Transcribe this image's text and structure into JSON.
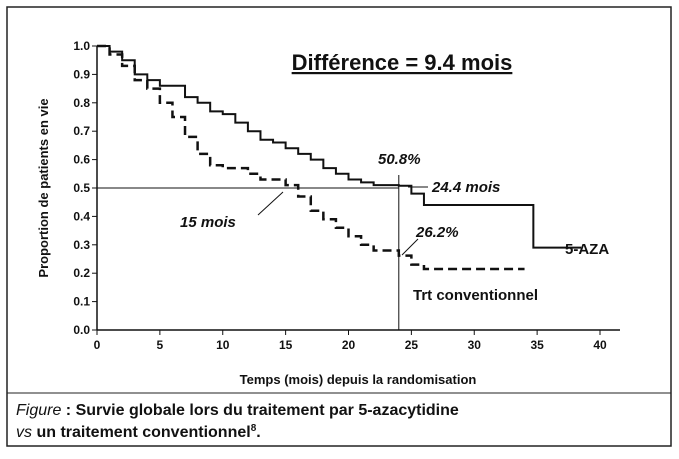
{
  "chart_data": {
    "type": "step",
    "title": "Différence = 9.4 mois",
    "xlabel": "Temps (mois) depuis la randomisation",
    "ylabel": "Proportion de patients en vie",
    "xlim": [
      0,
      40
    ],
    "ylim": [
      0,
      1
    ],
    "xticks": [
      0,
      5,
      10,
      15,
      20,
      25,
      30,
      35,
      40
    ],
    "yticks": [
      {
        "value": 1,
        "label": "1.0"
      },
      0.9,
      0.8,
      0.7,
      0.6,
      0.5,
      0.4,
      0.3,
      0.2,
      0.1,
      {
        "value": 0,
        "label": "0.0"
      }
    ],
    "hlines": [
      0.5
    ],
    "vlines": [
      24
    ],
    "series": [
      {
        "name": "5-AZA",
        "color": "#111111",
        "dash": false,
        "x": [
          0,
          1,
          2,
          3,
          4,
          5,
          7,
          8,
          9,
          10,
          11,
          12,
          13,
          14,
          15,
          16,
          17,
          18,
          19,
          20,
          21,
          22,
          24,
          25,
          26,
          34.7,
          38.5
        ],
        "values": [
          1.0,
          0.98,
          0.95,
          0.9,
          0.88,
          0.86,
          0.82,
          0.8,
          0.77,
          0.76,
          0.73,
          0.7,
          0.67,
          0.66,
          0.64,
          0.62,
          0.6,
          0.57,
          0.55,
          0.53,
          0.52,
          0.51,
          0.508,
          0.48,
          0.44,
          0.29,
          0.29
        ]
      },
      {
        "name": "Trt conventionnel",
        "color": "#111111",
        "dash": true,
        "x": [
          0,
          1,
          2,
          3,
          4,
          5,
          6,
          7,
          8,
          9,
          10,
          12,
          13,
          15,
          16,
          17,
          18,
          19,
          20,
          21,
          22,
          24,
          25,
          26,
          34
        ],
        "values": [
          1.0,
          0.97,
          0.93,
          0.88,
          0.85,
          0.8,
          0.75,
          0.68,
          0.62,
          0.58,
          0.57,
          0.55,
          0.53,
          0.51,
          0.47,
          0.42,
          0.39,
          0.36,
          0.33,
          0.3,
          0.28,
          0.262,
          0.23,
          0.215,
          0.215
        ]
      }
    ],
    "annotations": [
      "50.8%",
      "24.4 mois",
      "15 mois",
      "26.2%"
    ]
  },
  "caption": {
    "parts": [
      "Figure",
      " : Survie globale lors du traitement par 5-azacytidine",
      "vs",
      " un traitement conventionnel",
      "8",
      "."
    ]
  }
}
